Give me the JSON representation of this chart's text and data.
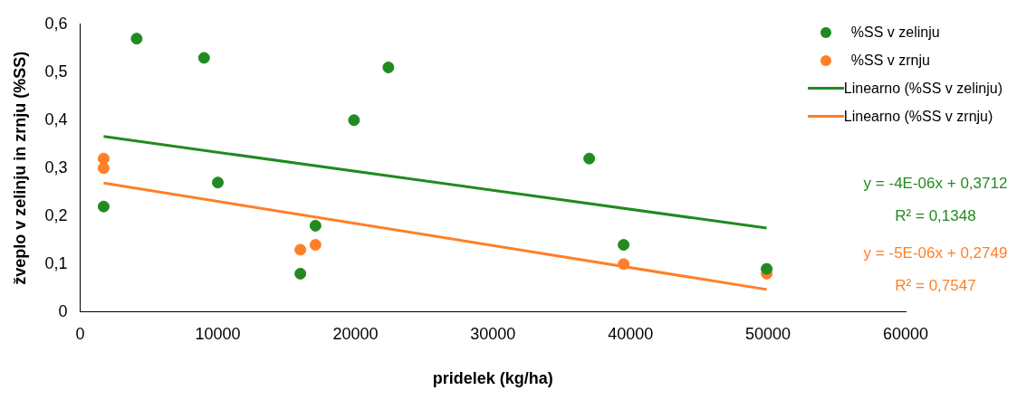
{
  "chart_data": {
    "type": "scatter",
    "xlabel": "pridelek (kg/ha)",
    "ylabel": "žveplo v zelinju in zrnju (%SS)",
    "xlim": [
      0,
      60000
    ],
    "xticks": [
      0,
      10000,
      20000,
      30000,
      40000,
      50000,
      60000
    ],
    "ylim": [
      0,
      0.6
    ],
    "yticks": [
      {
        "value": 0,
        "label": "0"
      },
      {
        "value": 0.1,
        "label": "0,1"
      },
      {
        "value": 0.2,
        "label": "0,2"
      },
      {
        "value": 0.3,
        "label": "0,3"
      },
      {
        "value": 0.4,
        "label": "0,4"
      },
      {
        "value": 0.5,
        "label": "0,5"
      },
      {
        "value": 0.6,
        "label": "0,6"
      }
    ],
    "grid": false,
    "legend": "top right",
    "marker": "circle",
    "series": [
      {
        "name": "%SS v zelinju",
        "color": "#218a21",
        "x": [
          1700,
          4100,
          9000,
          10000,
          16000,
          17100,
          19900,
          22400,
          37000,
          39500,
          49900
        ],
        "values": [
          0.22,
          0.57,
          0.53,
          0.27,
          0.08,
          0.18,
          0.4,
          0.51,
          0.32,
          0.14,
          0.09
        ]
      },
      {
        "name": "%SS v zrnju",
        "color": "#ff7f27",
        "x": [
          1700,
          1700,
          16000,
          17100,
          39500,
          49900
        ],
        "values": [
          0.32,
          0.3,
          0.13,
          0.14,
          0.1,
          0.08
        ]
      },
      {
        "name": "Linearno (%SS v zelinju)",
        "type": "line",
        "marker": "none",
        "color": "#218a21",
        "x": [
          1700,
          49900
        ],
        "values": [
          0.366,
          0.175
        ]
      },
      {
        "name": "Linearno (%SS v zrnju)",
        "type": "line",
        "marker": "none",
        "color": "#ff7f27",
        "x": [
          1700,
          49900
        ],
        "values": [
          0.269,
          0.047
        ]
      }
    ],
    "annotations": [
      "y = -4E-06x + 0,3712",
      "R² = 0,1348",
      "y = -5E-06x + 0,2749",
      "R² = 0,7547"
    ]
  }
}
